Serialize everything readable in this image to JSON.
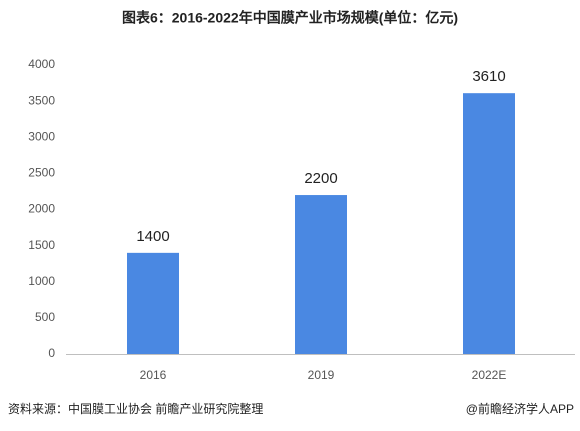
{
  "chart_data": {
    "type": "bar",
    "title": "图表6：2016-2022年中国膜产业市场规模(单位：亿元)",
    "categories": [
      "2016",
      "2019",
      "2022E"
    ],
    "values": [
      1400,
      2200,
      3610
    ],
    "color": "#4a88e2",
    "ylim": [
      0,
      4000
    ],
    "yticks": [
      0,
      500,
      1000,
      1500,
      2000,
      2500,
      3000,
      3500,
      4000
    ],
    "grid": false,
    "source": "资料来源：中国膜工业协会 前瞻产业研究院整理",
    "credit": "@前瞻经济学人APP"
  }
}
